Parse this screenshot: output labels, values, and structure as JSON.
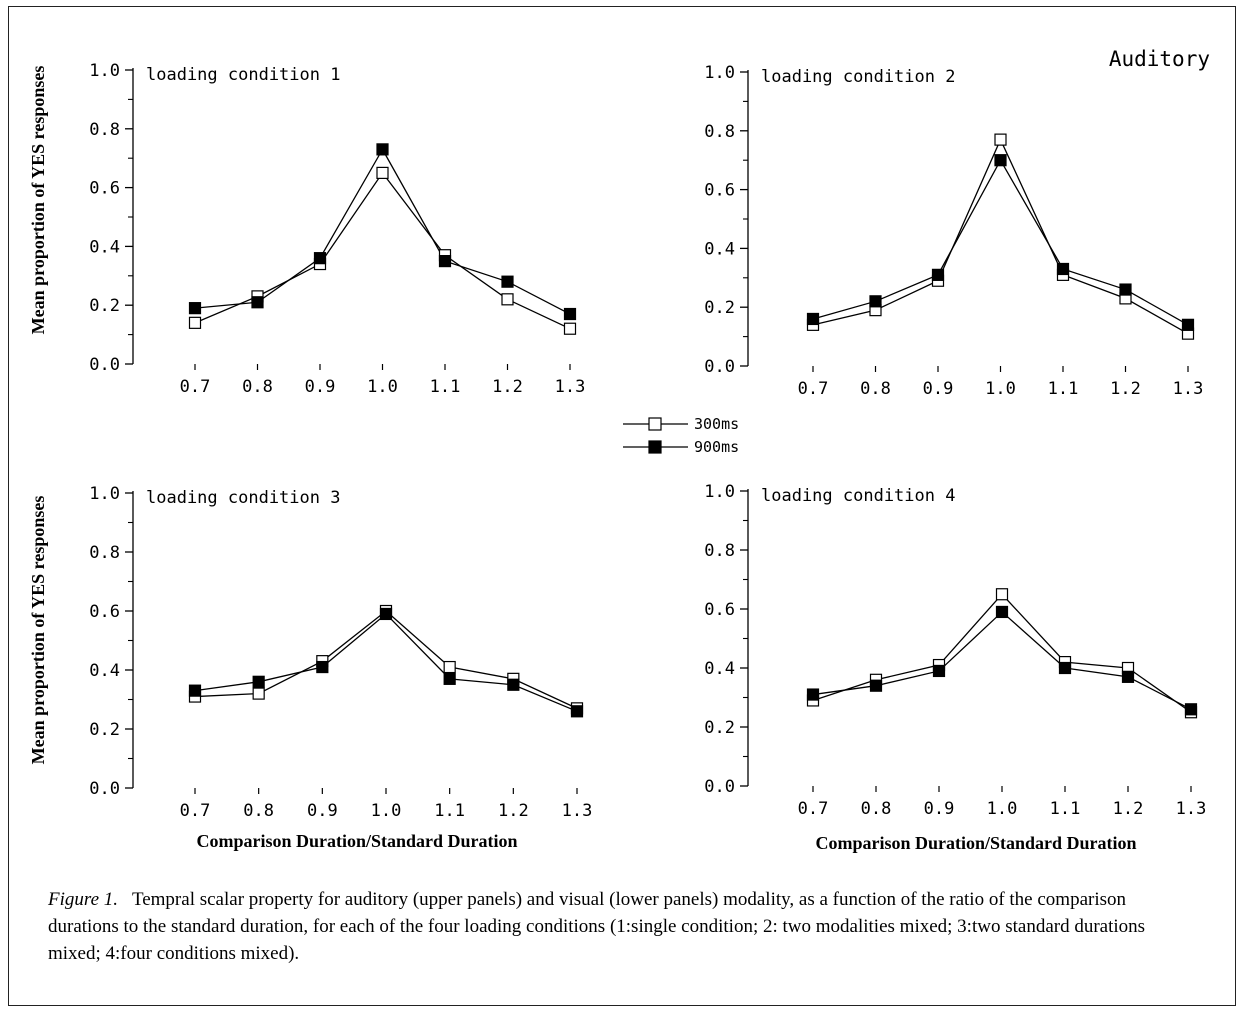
{
  "figure": {
    "modality_label": "Auditory",
    "ylabel": "Mean proportion of YES responses",
    "xlabel": "Comparison Duration/Standard Duration",
    "legend": [
      {
        "label": "300ms",
        "marker": "open-square"
      },
      {
        "label": "900ms",
        "marker": "filled-square"
      }
    ],
    "caption": {
      "label": "Figure 1.",
      "text": "Tempral scalar property for auditory (upper panels) and visual (lower panels) modality, as a function of  the ratio of the comparison durations to the standard duration, for each of the four loading conditions (1:single condition; 2: two modalities mixed; 3:two standard durations mixed; 4:four conditions mixed)."
    }
  },
  "colors": {
    "line": "#000000",
    "open_marker_fill": "#ffffff",
    "filled_marker_fill": "#000000"
  },
  "chart_data": [
    {
      "type": "line",
      "panel_label": "loading condition 1",
      "x": [
        0.7,
        0.8,
        0.9,
        1.0,
        1.1,
        1.2,
        1.3
      ],
      "x_tick_labels": [
        "0.7",
        "0.8",
        "0.9",
        "1.0",
        "1.1",
        "1.2",
        "1.3"
      ],
      "y_tick_labels": [
        "0.0",
        "0.2",
        "0.4",
        "0.6",
        "0.8",
        "1.0"
      ],
      "ylim": [
        0,
        1.0
      ],
      "series": [
        {
          "name": "300ms",
          "marker": "open-square",
          "values": [
            0.14,
            0.23,
            0.34,
            0.65,
            0.37,
            0.22,
            0.12
          ]
        },
        {
          "name": "900ms",
          "marker": "filled-square",
          "values": [
            0.19,
            0.21,
            0.36,
            0.73,
            0.35,
            0.28,
            0.17
          ]
        }
      ]
    },
    {
      "type": "line",
      "panel_label": "loading condition 2",
      "x": [
        0.7,
        0.8,
        0.9,
        1.0,
        1.1,
        1.2,
        1.3
      ],
      "x_tick_labels": [
        "0.7",
        "0.8",
        "0.9",
        "1.0",
        "1.1",
        "1.2",
        "1.3"
      ],
      "y_tick_labels": [
        "0.0",
        "0.2",
        "0.4",
        "0.6",
        "0.8",
        "1.0"
      ],
      "ylim": [
        0,
        1.0
      ],
      "series": [
        {
          "name": "300ms",
          "marker": "open-square",
          "values": [
            0.14,
            0.19,
            0.29,
            0.77,
            0.31,
            0.23,
            0.11
          ]
        },
        {
          "name": "900ms",
          "marker": "filled-square",
          "values": [
            0.16,
            0.22,
            0.31,
            0.7,
            0.33,
            0.26,
            0.14
          ]
        }
      ]
    },
    {
      "type": "line",
      "panel_label": "loading condition 3",
      "x": [
        0.7,
        0.8,
        0.9,
        1.0,
        1.1,
        1.2,
        1.3
      ],
      "x_tick_labels": [
        "0.7",
        "0.8",
        "0.9",
        "1.0",
        "1.1",
        "1.2",
        "1.3"
      ],
      "y_tick_labels": [
        "0.0",
        "0.2",
        "0.4",
        "0.6",
        "0.8",
        "1.0"
      ],
      "ylim": [
        0,
        1.0
      ],
      "series": [
        {
          "name": "300ms",
          "marker": "open-square",
          "values": [
            0.31,
            0.32,
            0.43,
            0.6,
            0.41,
            0.37,
            0.27
          ]
        },
        {
          "name": "900ms",
          "marker": "filled-square",
          "values": [
            0.33,
            0.36,
            0.41,
            0.59,
            0.37,
            0.35,
            0.26
          ]
        }
      ]
    },
    {
      "type": "line",
      "panel_label": "loading condition 4",
      "x": [
        0.7,
        0.8,
        0.9,
        1.0,
        1.1,
        1.2,
        1.3
      ],
      "x_tick_labels": [
        "0.7",
        "0.8",
        "0.9",
        "1.0",
        "1.1",
        "1.2",
        "1.3"
      ],
      "y_tick_labels": [
        "0.0",
        "0.2",
        "0.4",
        "0.6",
        "0.8",
        "1.0"
      ],
      "ylim": [
        0,
        1.0
      ],
      "series": [
        {
          "name": "300ms",
          "marker": "open-square",
          "values": [
            0.29,
            0.36,
            0.41,
            0.65,
            0.42,
            0.4,
            0.25
          ]
        },
        {
          "name": "900ms",
          "marker": "filled-square",
          "values": [
            0.31,
            0.34,
            0.39,
            0.59,
            0.4,
            0.37,
            0.26
          ]
        }
      ]
    }
  ]
}
